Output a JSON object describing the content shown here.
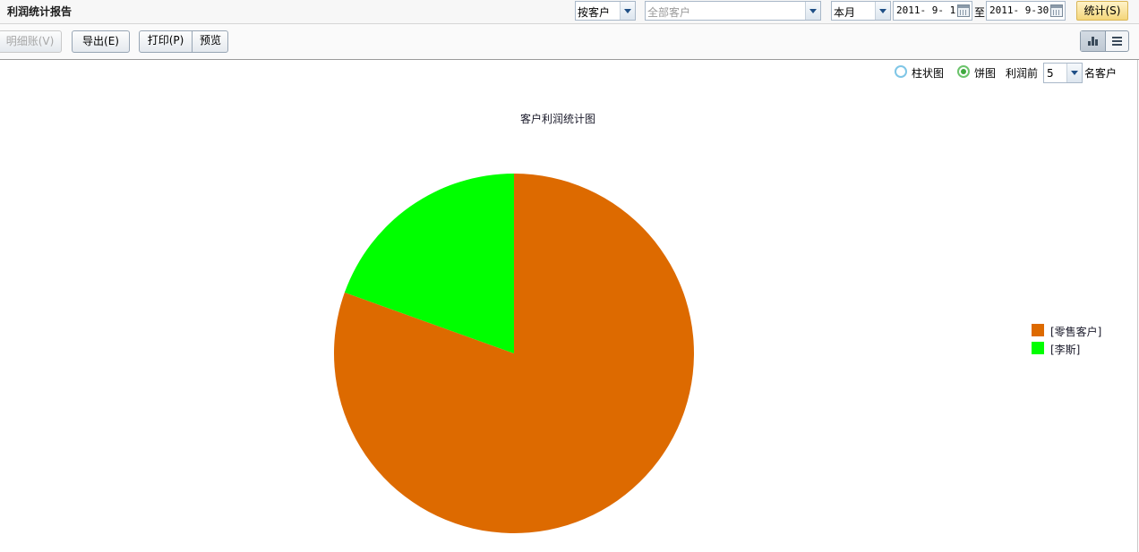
{
  "header": {
    "title": "利润统计报告",
    "group_by": "按客户",
    "customer_placeholder": "全部客户",
    "period": "本月",
    "date_from": "2011- 9- 1",
    "date_sep": "至",
    "date_to": "2011- 9-30",
    "stat_button": "统计(S)"
  },
  "toolbar": {
    "detail_button": "明细账(V)",
    "export_button": "导出(E)",
    "print_button": "打印(P)",
    "preview_button": "预览"
  },
  "options": {
    "bar_label": "柱状图",
    "pie_label": "饼图",
    "bar_selected": false,
    "pie_selected": true,
    "top_prefix": "利润前",
    "top_n": "5",
    "top_suffix": "名客户"
  },
  "chart_data": {
    "type": "pie",
    "title": "客户利润统计图",
    "labels": [
      "[零售客户]",
      "[李斯]"
    ],
    "values": [
      80.5,
      19.5
    ],
    "colors": [
      "#dd6a00",
      "#00ff00"
    ],
    "legend": "right"
  }
}
